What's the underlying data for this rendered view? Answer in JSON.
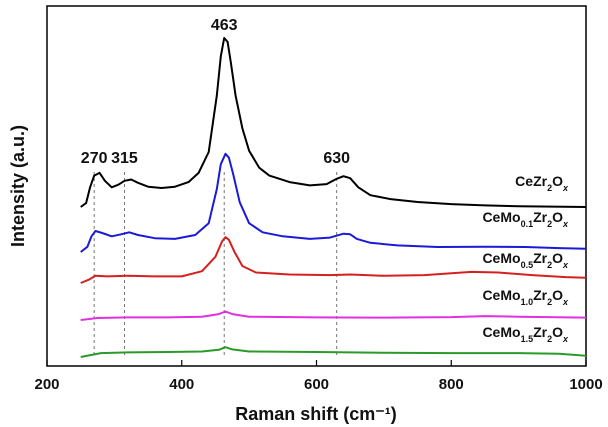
{
  "chart_data": {
    "type": "line",
    "xlabel": "Raman shift (cm⁻¹)",
    "ylabel": "Intensity (a.u.)",
    "xlim": [
      200,
      1000
    ],
    "xticks": [
      200,
      400,
      600,
      800,
      1000
    ],
    "y_ticks_shown": false,
    "grid": false,
    "legend": "series names written beside each curve on the right",
    "peak_markers": [
      270,
      315,
      463,
      630
    ],
    "peak_annotations": [
      "270",
      "315",
      "463",
      "630"
    ],
    "series": [
      {
        "name": "CeZr2Ox",
        "name_parts": [
          [
            "Ce",
            ""
          ],
          [
            "Zr",
            "2"
          ],
          [
            "O",
            "x"
          ]
        ],
        "color": "#000000",
        "points": [
          [
            250,
            0
          ],
          [
            258,
            0.3
          ],
          [
            264,
            1.5
          ],
          [
            270,
            2.4
          ],
          [
            278,
            2.6
          ],
          [
            286,
            2.0
          ],
          [
            296,
            1.5
          ],
          [
            306,
            1.7
          ],
          [
            315,
            2.0
          ],
          [
            325,
            2.1
          ],
          [
            335,
            1.85
          ],
          [
            350,
            1.55
          ],
          [
            370,
            1.45
          ],
          [
            390,
            1.55
          ],
          [
            410,
            1.9
          ],
          [
            425,
            2.6
          ],
          [
            440,
            4.2
          ],
          [
            452,
            8.5
          ],
          [
            458,
            11.5
          ],
          [
            463,
            12.9
          ],
          [
            468,
            12.6
          ],
          [
            473,
            11.0
          ],
          [
            480,
            8.5
          ],
          [
            490,
            6.0
          ],
          [
            500,
            4.3
          ],
          [
            515,
            3.0
          ],
          [
            530,
            2.4
          ],
          [
            560,
            1.9
          ],
          [
            590,
            1.65
          ],
          [
            615,
            1.75
          ],
          [
            630,
            2.15
          ],
          [
            640,
            2.35
          ],
          [
            650,
            2.2
          ],
          [
            662,
            1.5
          ],
          [
            680,
            0.9
          ],
          [
            710,
            0.6
          ],
          [
            750,
            0.38
          ],
          [
            800,
            0.22
          ],
          [
            850,
            0.12
          ],
          [
            900,
            0.06
          ],
          [
            950,
            0.03
          ],
          [
            1000,
            0
          ]
        ]
      },
      {
        "name": "CeMo0.1Zr2Ox",
        "name_parts": [
          [
            "Ce",
            ""
          ],
          [
            "Mo",
            "0.1"
          ],
          [
            "Zr",
            "2"
          ],
          [
            "O",
            "x"
          ]
        ],
        "color": "#1a1ad8",
        "points": [
          [
            250,
            0
          ],
          [
            260,
            0.4
          ],
          [
            266,
            1.2
          ],
          [
            272,
            1.6
          ],
          [
            282,
            1.45
          ],
          [
            296,
            1.2
          ],
          [
            310,
            1.35
          ],
          [
            322,
            1.5
          ],
          [
            335,
            1.3
          ],
          [
            360,
            1.05
          ],
          [
            390,
            1.0
          ],
          [
            420,
            1.3
          ],
          [
            440,
            2.2
          ],
          [
            452,
            4.8
          ],
          [
            458,
            6.7
          ],
          [
            465,
            7.5
          ],
          [
            470,
            7.2
          ],
          [
            476,
            6.0
          ],
          [
            486,
            3.8
          ],
          [
            500,
            2.2
          ],
          [
            520,
            1.5
          ],
          [
            550,
            1.2
          ],
          [
            590,
            1.0
          ],
          [
            620,
            1.1
          ],
          [
            640,
            1.4
          ],
          [
            650,
            1.35
          ],
          [
            660,
            1.0
          ],
          [
            680,
            0.7
          ],
          [
            720,
            0.5
          ],
          [
            780,
            0.38
          ],
          [
            850,
            0.4
          ],
          [
            910,
            0.38
          ],
          [
            960,
            0.3
          ],
          [
            1000,
            0.25
          ]
        ]
      },
      {
        "name": "CeMo0.5Zr2Ox",
        "name_parts": [
          [
            "Ce",
            ""
          ],
          [
            "Mo",
            "0.5"
          ],
          [
            "Zr",
            "2"
          ],
          [
            "O",
            "x"
          ]
        ],
        "color": "#d42020",
        "points": [
          [
            250,
            0
          ],
          [
            262,
            0.25
          ],
          [
            272,
            0.55
          ],
          [
            290,
            0.5
          ],
          [
            320,
            0.55
          ],
          [
            360,
            0.5
          ],
          [
            400,
            0.5
          ],
          [
            430,
            0.9
          ],
          [
            450,
            2.0
          ],
          [
            460,
            3.2
          ],
          [
            465,
            3.5
          ],
          [
            470,
            3.3
          ],
          [
            478,
            2.4
          ],
          [
            490,
            1.3
          ],
          [
            510,
            0.8
          ],
          [
            560,
            0.65
          ],
          [
            620,
            0.6
          ],
          [
            650,
            0.65
          ],
          [
            700,
            0.55
          ],
          [
            760,
            0.6
          ],
          [
            830,
            0.85
          ],
          [
            870,
            0.8
          ],
          [
            920,
            0.6
          ],
          [
            970,
            0.45
          ],
          [
            1000,
            0.4
          ]
        ]
      },
      {
        "name": "CeMo1.0Zr2Ox",
        "name_parts": [
          [
            "Ce",
            ""
          ],
          [
            "Mo",
            "1.0"
          ],
          [
            "Zr",
            "2"
          ],
          [
            "O",
            "x"
          ]
        ],
        "color": "#e030e0",
        "points": [
          [
            250,
            0
          ],
          [
            275,
            0.15
          ],
          [
            320,
            0.2
          ],
          [
            380,
            0.2
          ],
          [
            430,
            0.25
          ],
          [
            455,
            0.45
          ],
          [
            465,
            0.65
          ],
          [
            475,
            0.45
          ],
          [
            500,
            0.25
          ],
          [
            600,
            0.2
          ],
          [
            700,
            0.18
          ],
          [
            800,
            0.22
          ],
          [
            850,
            0.3
          ],
          [
            900,
            0.25
          ],
          [
            1000,
            0.18
          ]
        ]
      },
      {
        "name": "CeMo1.5Zr2Ox",
        "name_parts": [
          [
            "Ce",
            ""
          ],
          [
            "Mo",
            "1.5"
          ],
          [
            "Zr",
            "2"
          ],
          [
            "O",
            "x"
          ]
        ],
        "color": "#2a9a2a",
        "points": [
          [
            250,
            0
          ],
          [
            280,
            0.3
          ],
          [
            320,
            0.35
          ],
          [
            380,
            0.38
          ],
          [
            430,
            0.42
          ],
          [
            455,
            0.55
          ],
          [
            465,
            0.75
          ],
          [
            475,
            0.58
          ],
          [
            500,
            0.42
          ],
          [
            600,
            0.38
          ],
          [
            700,
            0.32
          ],
          [
            800,
            0.3
          ],
          [
            900,
            0.3
          ],
          [
            960,
            0.25
          ],
          [
            1000,
            0.1
          ]
        ]
      }
    ]
  }
}
